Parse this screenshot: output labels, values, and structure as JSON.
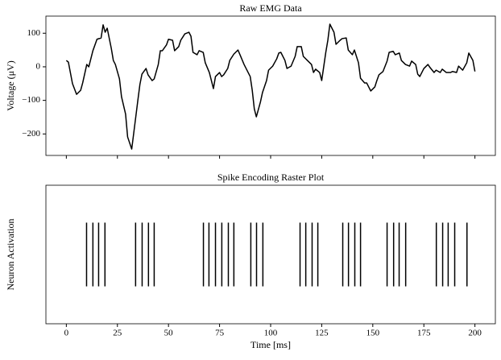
{
  "chart_data": [
    {
      "type": "line",
      "title": "Raw EMG Data",
      "y_label": "Voltage (μV)",
      "x": [
        0,
        1,
        3,
        5,
        7,
        8,
        10,
        11,
        13,
        15,
        17,
        18,
        19,
        20,
        22,
        23,
        24,
        26,
        27,
        29,
        30,
        32,
        33,
        35,
        36,
        37,
        39,
        40,
        42,
        43,
        45,
        46,
        47,
        49,
        50,
        52,
        53,
        55,
        56,
        58,
        60,
        61,
        62,
        64,
        65,
        67,
        68,
        70,
        71,
        72,
        73,
        75,
        76,
        77,
        79,
        80,
        82,
        84,
        85,
        87,
        88,
        90,
        91,
        92,
        93,
        95,
        96,
        98,
        99,
        101,
        103,
        104,
        105,
        107,
        108,
        110,
        112,
        113,
        115,
        116,
        118,
        120,
        121,
        122,
        124,
        125,
        127,
        128,
        129,
        131,
        132,
        134,
        135,
        137,
        138,
        140,
        141,
        143,
        144,
        146,
        147,
        149,
        151,
        152,
        153,
        155,
        157,
        158,
        160,
        161,
        163,
        164,
        166,
        168,
        169,
        171,
        172,
        173,
        175,
        177,
        178,
        180,
        181,
        183,
        184,
        186,
        188,
        189,
        191,
        192,
        194,
        196,
        197,
        199,
        200
      ],
      "series": [
        {
          "color": "#000000",
          "values": [
            19,
            14,
            -50,
            -82,
            -70,
            -48,
            7,
            0,
            48,
            82,
            86,
            125,
            103,
            115,
            55,
            19,
            7,
            -36,
            -89,
            -141,
            -209,
            -245,
            -197,
            -100,
            -53,
            -22,
            -5,
            -24,
            -41,
            -36,
            7,
            48,
            48,
            65,
            82,
            79,
            48,
            60,
            79,
            98,
            103,
            91,
            43,
            36,
            48,
            43,
            12,
            -17,
            -41,
            -65,
            -29,
            -17,
            -29,
            -24,
            -5,
            19,
            38,
            50,
            36,
            7,
            -5,
            -29,
            -70,
            -125,
            -149,
            -105,
            -77,
            -41,
            -10,
            2,
            24,
            41,
            43,
            19,
            -5,
            2,
            31,
            60,
            60,
            31,
            19,
            7,
            -17,
            -7,
            -17,
            -41,
            43,
            79,
            127,
            103,
            67,
            79,
            84,
            86,
            50,
            36,
            50,
            12,
            -34,
            -48,
            -48,
            -72,
            -60,
            -41,
            -24,
            -14,
            17,
            43,
            46,
            36,
            41,
            19,
            7,
            2,
            17,
            7,
            -22,
            -29,
            -5,
            7,
            -2,
            -17,
            -10,
            -17,
            -7,
            -17,
            -17,
            -14,
            -17,
            2,
            -10,
            12,
            41,
            19,
            -14
          ]
        }
      ],
      "xlim": [
        -10,
        210
      ],
      "xticks": [
        0,
        25,
        50,
        75,
        100,
        125,
        150,
        175,
        200
      ],
      "ylim": [
        -264,
        151
      ],
      "yticks": [
        {
          "value": -200,
          "label": "−200"
        },
        {
          "value": -100,
          "label": "−100"
        },
        0,
        100
      ]
    },
    {
      "type": "raster",
      "title": "Spike Encoding Raster Plot",
      "x_label": "Time [ms]",
      "y_label": "Neuron Activation",
      "color": "#000000",
      "spikes": [
        9.9,
        13,
        15.8,
        18.9,
        33.9,
        37.1,
        40.2,
        43,
        67.1,
        69.8,
        73,
        76.1,
        79.3,
        82,
        90.3,
        93.1,
        96.2,
        114.4,
        117.2,
        120.3,
        123.1,
        135.3,
        138.1,
        141.2,
        144,
        157,
        160.2,
        162.9,
        166.1,
        181.1,
        184.2,
        186.9,
        190.1,
        196.1
      ],
      "xlim": [
        -10,
        210
      ],
      "xticks": [
        0,
        25,
        50,
        75,
        100,
        125,
        150,
        175,
        200
      ]
    }
  ]
}
